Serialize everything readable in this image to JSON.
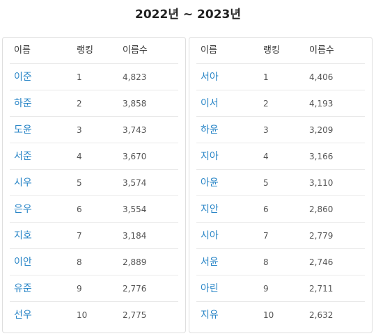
{
  "title": "2022년 ~ 2023년",
  "columns": {
    "name": "이름",
    "rank": "랭킹",
    "count": "이름수"
  },
  "tables": [
    {
      "rows": [
        {
          "name": "이준",
          "rank": "1",
          "count": "4,823"
        },
        {
          "name": "하준",
          "rank": "2",
          "count": "3,858"
        },
        {
          "name": "도윤",
          "rank": "3",
          "count": "3,743"
        },
        {
          "name": "서준",
          "rank": "4",
          "count": "3,670"
        },
        {
          "name": "시우",
          "rank": "5",
          "count": "3,574"
        },
        {
          "name": "은우",
          "rank": "6",
          "count": "3,554"
        },
        {
          "name": "지호",
          "rank": "7",
          "count": "3,184"
        },
        {
          "name": "이안",
          "rank": "8",
          "count": "2,889"
        },
        {
          "name": "유준",
          "rank": "9",
          "count": "2,776"
        },
        {
          "name": "선우",
          "rank": "10",
          "count": "2,775"
        }
      ]
    },
    {
      "rows": [
        {
          "name": "서아",
          "rank": "1",
          "count": "4,406"
        },
        {
          "name": "이서",
          "rank": "2",
          "count": "4,193"
        },
        {
          "name": "하윤",
          "rank": "3",
          "count": "3,209"
        },
        {
          "name": "지아",
          "rank": "4",
          "count": "3,166"
        },
        {
          "name": "아윤",
          "rank": "5",
          "count": "3,110"
        },
        {
          "name": "지안",
          "rank": "6",
          "count": "2,860"
        },
        {
          "name": "시아",
          "rank": "7",
          "count": "2,779"
        },
        {
          "name": "서윤",
          "rank": "8",
          "count": "2,746"
        },
        {
          "name": "아린",
          "rank": "9",
          "count": "2,711"
        },
        {
          "name": "지유",
          "rank": "10",
          "count": "2,632"
        }
      ]
    }
  ],
  "colors": {
    "link": "#2a86c7",
    "border": "#dedede",
    "row_divider": "#e9e9e9"
  }
}
